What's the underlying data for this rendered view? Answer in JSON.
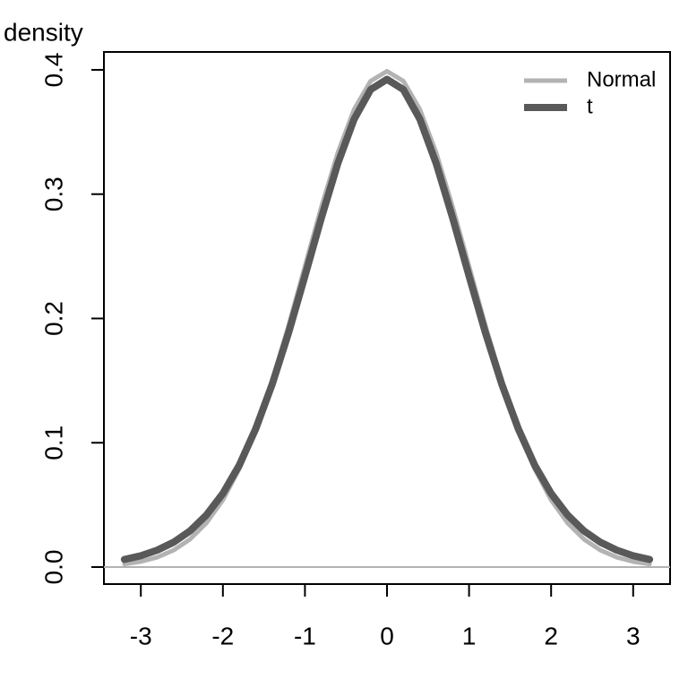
{
  "chart_data": {
    "type": "line",
    "y_label": "density",
    "x": [
      -3.2,
      -3.0,
      -2.8,
      -2.6,
      -2.4,
      -2.2,
      -2.0,
      -1.8,
      -1.6,
      -1.4,
      -1.2,
      -1.0,
      -0.8,
      -0.6,
      -0.4,
      -0.2,
      0,
      0.2,
      0.4,
      0.6,
      0.8,
      1.0,
      1.2,
      1.4,
      1.6,
      1.8,
      2.0,
      2.2,
      2.4,
      2.6,
      2.8,
      3.0,
      3.2
    ],
    "series": [
      {
        "name": "Normal",
        "color": "#b3b3b3",
        "values": [
          0.0024,
          0.0044,
          0.0079,
          0.0136,
          0.0224,
          0.0355,
          0.054,
          0.079,
          0.1109,
          0.1497,
          0.1942,
          0.242,
          0.2897,
          0.3332,
          0.3683,
          0.391,
          0.3989,
          0.391,
          0.3683,
          0.3332,
          0.2897,
          0.242,
          0.1942,
          0.1497,
          0.1109,
          0.079,
          0.054,
          0.0355,
          0.0224,
          0.0136,
          0.0079,
          0.0044,
          0.0024
        ]
      },
      {
        "name": "t",
        "color": "#595959",
        "values": [
          0.0061,
          0.0091,
          0.0136,
          0.02,
          0.0291,
          0.0419,
          0.0592,
          0.082,
          0.1112,
          0.1469,
          0.1884,
          0.2342,
          0.2809,
          0.3246,
          0.3604,
          0.3841,
          0.3924,
          0.3841,
          0.3604,
          0.3246,
          0.2809,
          0.2342,
          0.1884,
          0.1469,
          0.1112,
          0.082,
          0.0592,
          0.0419,
          0.0291,
          0.02,
          0.0136,
          0.0091,
          0.0061
        ]
      }
    ],
    "xlim": [
      -3.45,
      3.45
    ],
    "xticks": [
      -3,
      -2,
      -1,
      0,
      1,
      2,
      3
    ],
    "ylim": [
      -0.0137,
      0.4144
    ],
    "yticks": [
      {
        "value": 0,
        "label": "0.0"
      },
      0.1,
      0.2,
      0.3,
      0.4
    ],
    "reference_line": 0,
    "reference_color": "#b3b3b3",
    "legend": "top-right"
  }
}
